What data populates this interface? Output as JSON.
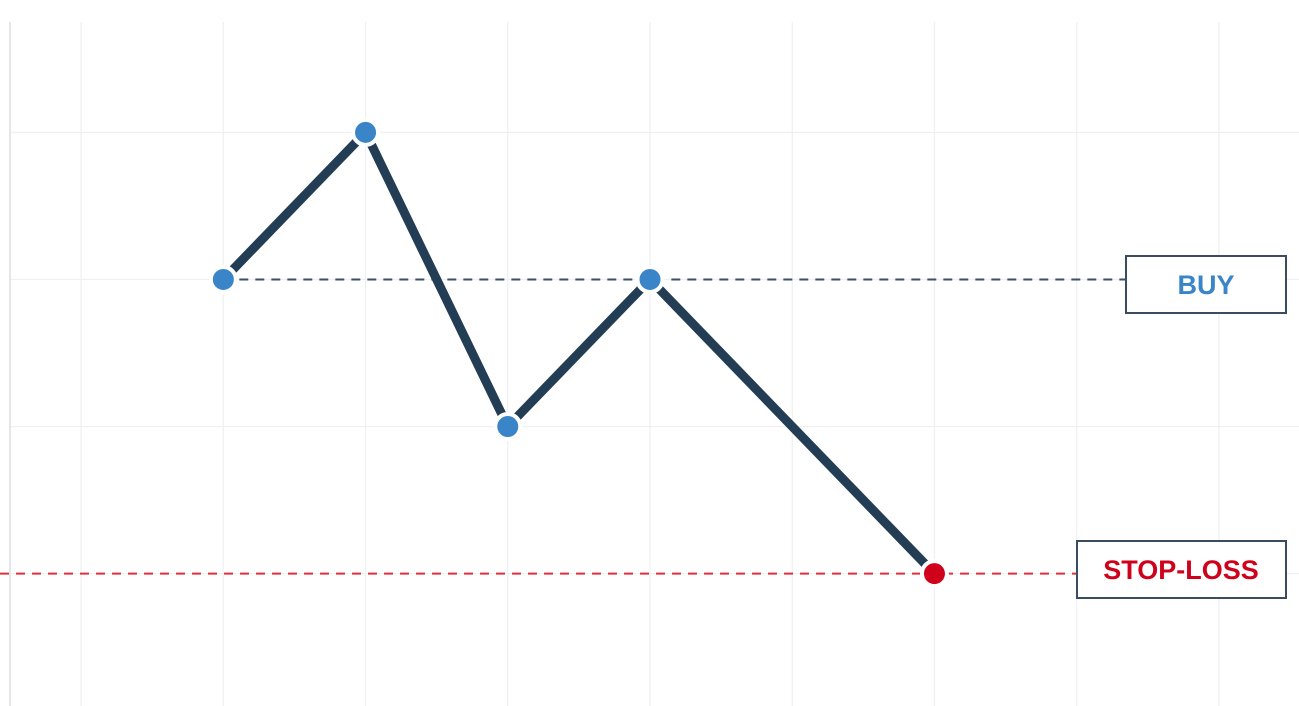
{
  "chart_data": {
    "type": "line",
    "title": "",
    "xlabel": "",
    "ylabel": "",
    "x": [
      1,
      2,
      3,
      4,
      6
    ],
    "y": [
      3,
      4,
      2,
      3,
      1
    ],
    "xlim": [
      -0.5,
      8.5
    ],
    "ylim": [
      0.1,
      4.9
    ],
    "point_colors": [
      "#3a85c8",
      "#3a85c8",
      "#3a85c8",
      "#3a85c8",
      "#d0021b"
    ],
    "line_color": "#233d55",
    "grid": true,
    "levels": [
      {
        "label": "BUY",
        "y": 3,
        "color": "#3a85c8",
        "line_color": "#3d5269"
      },
      {
        "label": "STOP-LOSS",
        "y": 1,
        "color": "#d0021b",
        "line_color": "#e0303a"
      }
    ]
  }
}
